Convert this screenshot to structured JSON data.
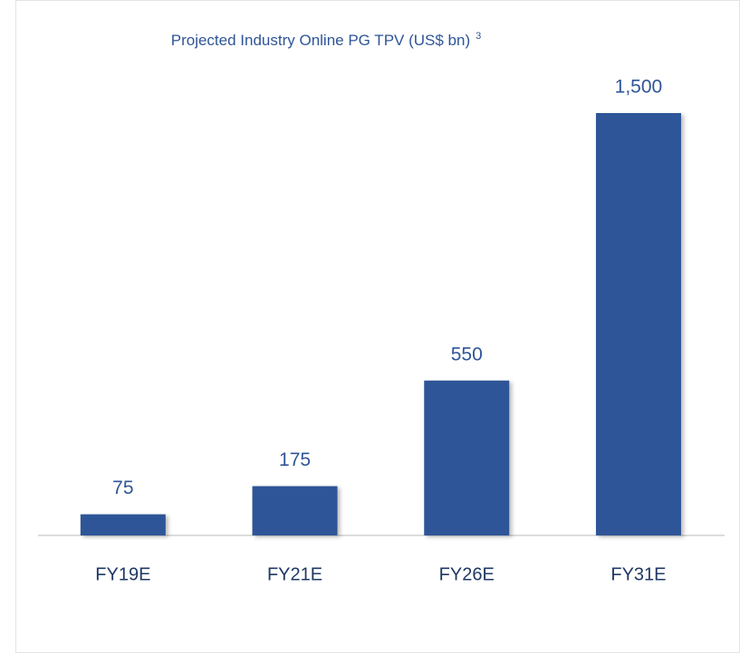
{
  "chart_data": {
    "type": "bar",
    "title": "Projected Industry Online PG TPV (US$ bn)",
    "title_note": "3",
    "categories": [
      "FY19E",
      "FY21E",
      "FY26E",
      "FY31E"
    ],
    "values": [
      75,
      175,
      550,
      1500
    ],
    "value_labels": [
      "75",
      "175",
      "550",
      "1,500"
    ],
    "color": "#2f5597"
  }
}
